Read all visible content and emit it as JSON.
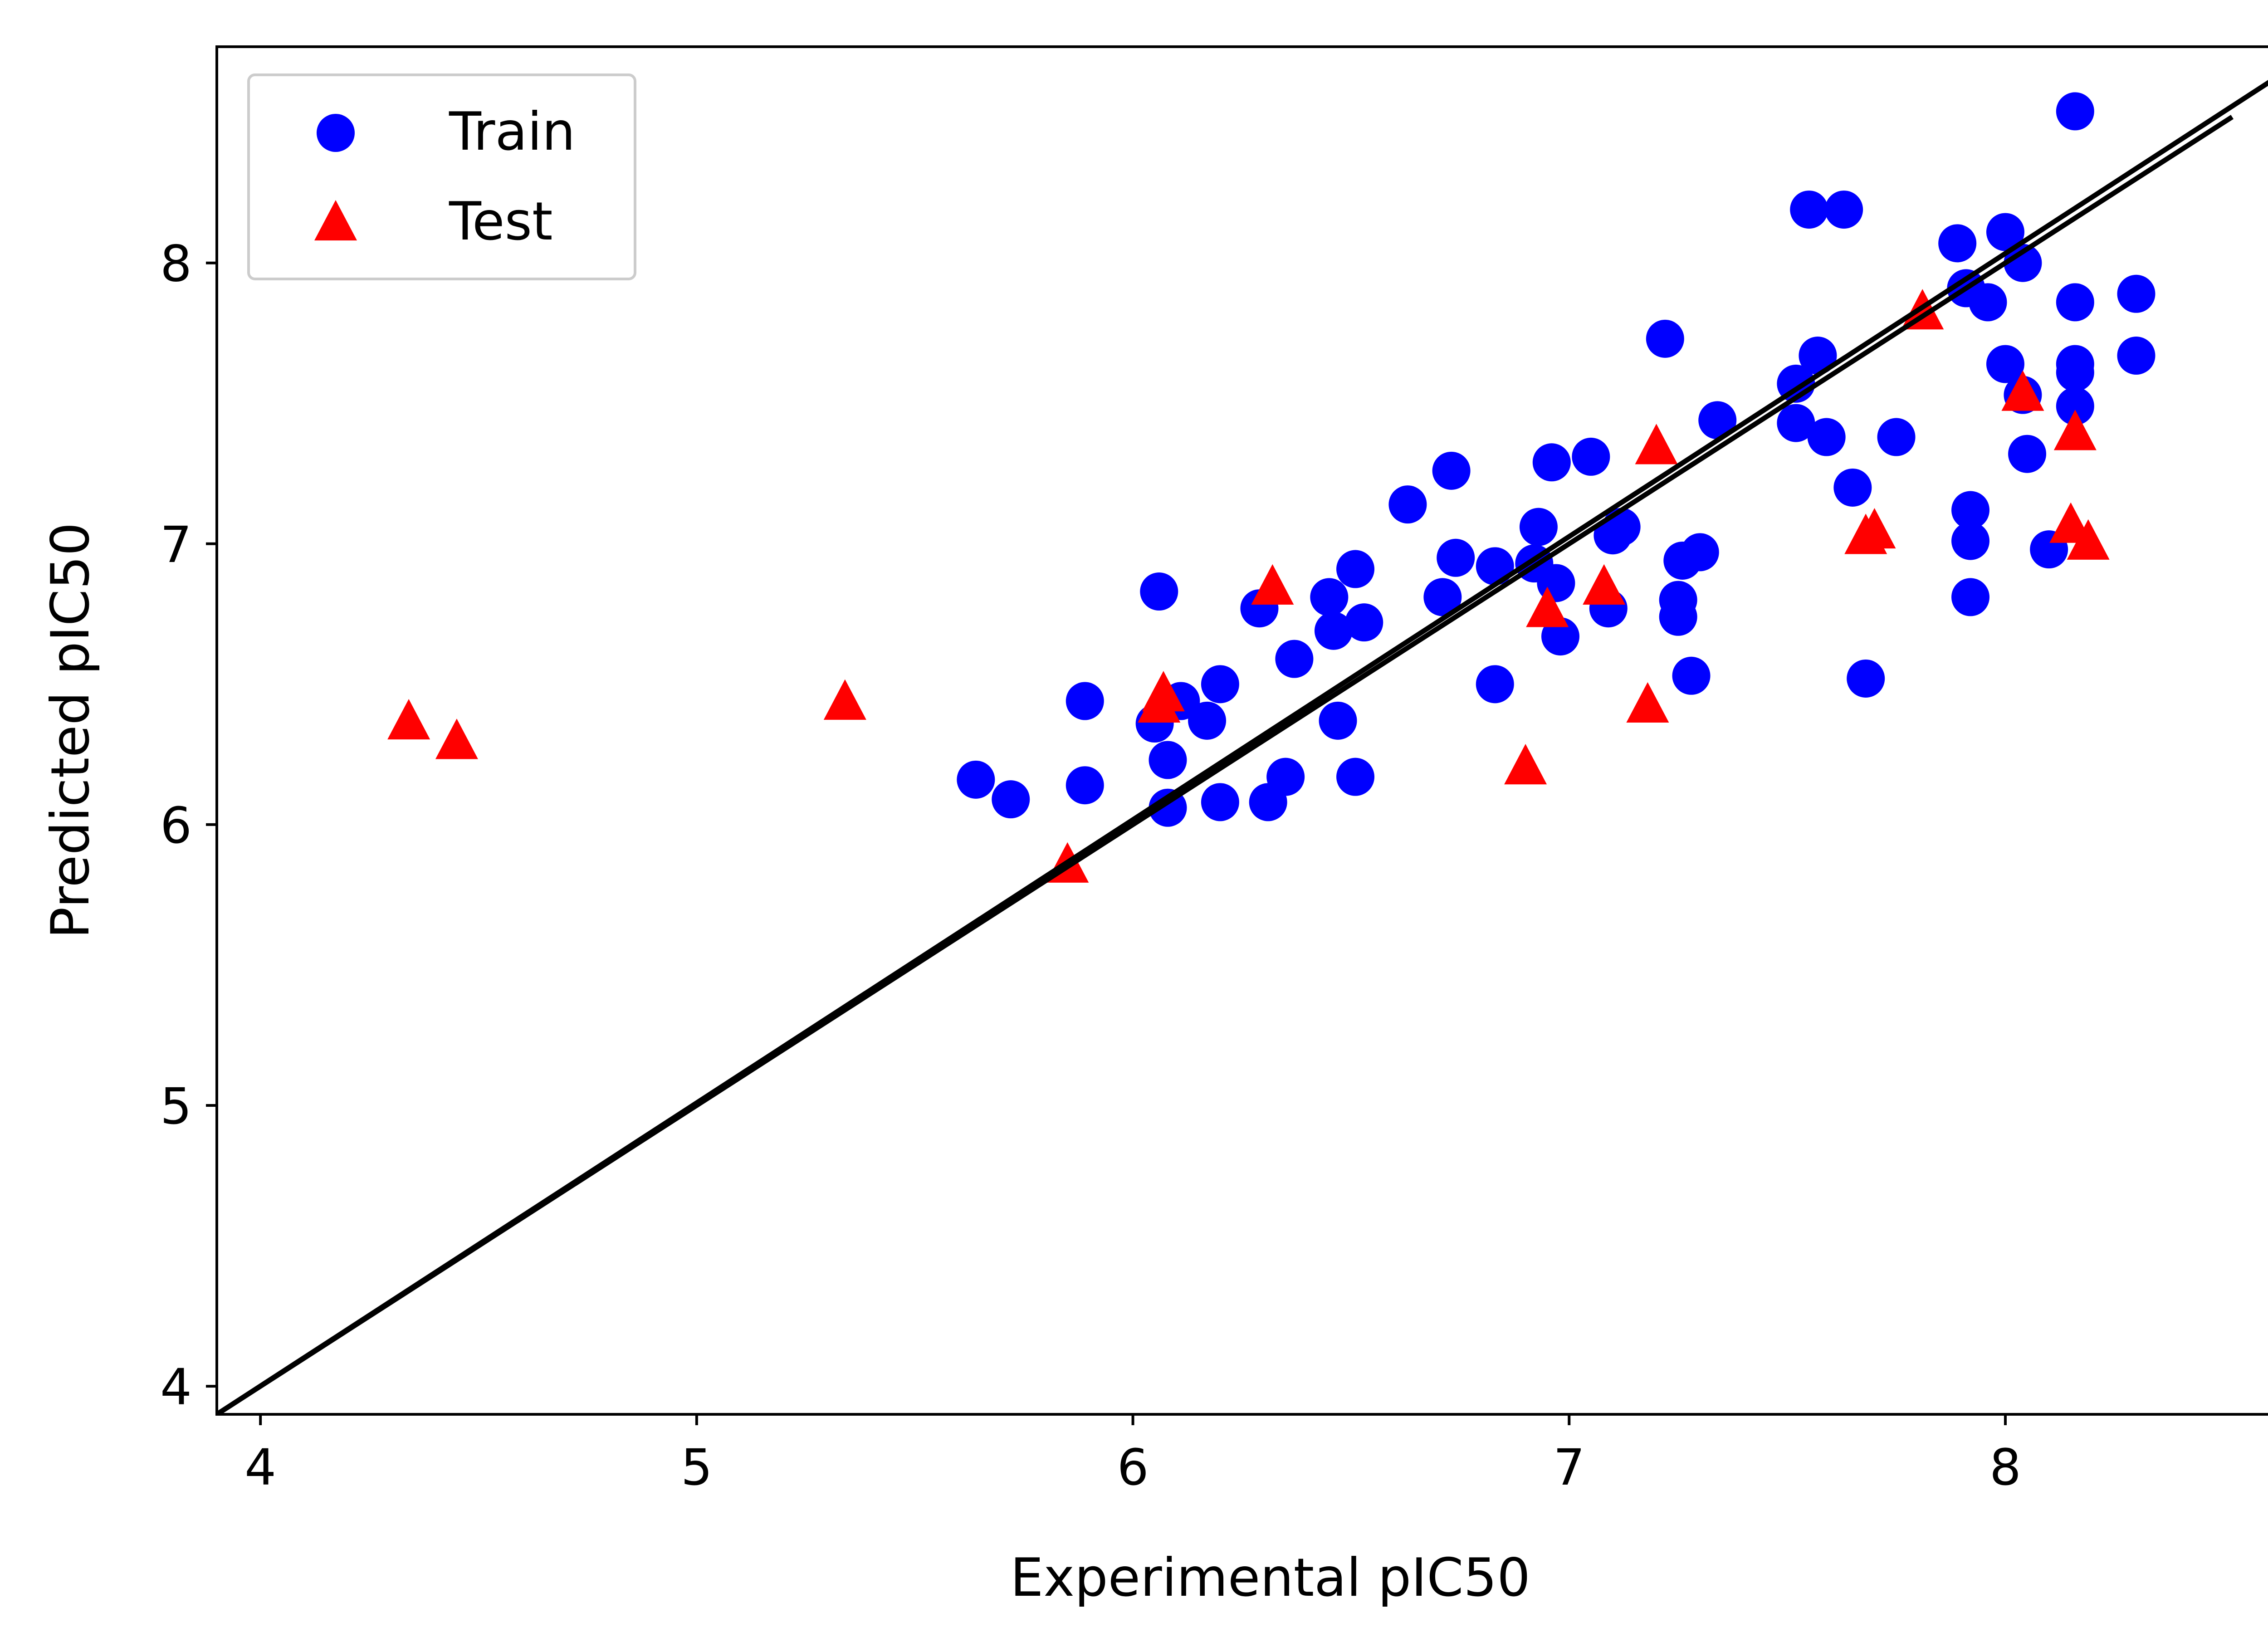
{
  "chart_data": {
    "type": "scatter",
    "title": "",
    "xlabel": "Experimental pIC50",
    "ylabel": "Predicted pIC50",
    "xlim": [
      3.9,
      8.73
    ],
    "ylim": [
      3.9,
      8.77
    ],
    "xticks": [
      4,
      5,
      6,
      7,
      8
    ],
    "yticks": [
      4,
      5,
      6,
      7,
      8
    ],
    "grid": false,
    "legend": {
      "placement": "top-left"
    },
    "colors": {
      "train": "#0000ff",
      "test": "#ff0000",
      "line": "#000000"
    },
    "series": [
      {
        "name": "Train",
        "marker": "circle",
        "x": [
          5.64,
          5.72,
          5.89,
          5.89,
          6.05,
          6.06,
          6.08,
          6.08,
          6.11,
          6.17,
          6.2,
          6.2,
          6.29,
          6.31,
          6.35,
          6.37,
          6.45,
          6.46,
          6.47,
          6.51,
          6.51,
          6.53,
          6.63,
          6.71,
          6.73,
          6.74,
          6.83,
          6.83,
          6.92,
          6.93,
          6.96,
          6.97,
          6.98,
          7.05,
          7.09,
          7.1,
          7.12,
          7.22,
          7.25,
          7.25,
          7.26,
          7.28,
          7.3,
          7.34,
          7.52,
          7.52,
          7.55,
          7.57,
          7.59,
          7.63,
          7.65,
          7.68,
          7.75,
          7.89,
          7.91,
          7.92,
          7.92,
          7.92,
          7.96,
          8.0,
          8.0,
          8.04,
          8.04,
          8.05,
          8.1,
          8.16,
          8.16,
          8.16,
          8.16,
          8.16,
          8.3,
          8.3
        ],
        "y": [
          6.16,
          6.09,
          6.14,
          6.44,
          6.36,
          6.83,
          6.06,
          6.23,
          6.44,
          6.37,
          6.08,
          6.5,
          6.77,
          6.08,
          6.17,
          6.59,
          6.81,
          6.69,
          6.37,
          6.91,
          6.17,
          6.72,
          7.14,
          6.81,
          7.26,
          6.95,
          6.92,
          6.5,
          6.93,
          7.06,
          7.29,
          6.86,
          6.67,
          7.31,
          6.77,
          7.03,
          7.06,
          7.73,
          6.74,
          6.8,
          6.94,
          6.53,
          6.97,
          7.44,
          7.57,
          7.43,
          8.19,
          7.67,
          7.38,
          8.19,
          7.2,
          6.52,
          7.38,
          8.07,
          7.91,
          7.12,
          7.01,
          6.81,
          7.86,
          8.11,
          7.64,
          8.0,
          7.53,
          7.32,
          6.98,
          8.54,
          7.86,
          7.64,
          7.61,
          7.49,
          7.89,
          7.67
        ]
      },
      {
        "name": "Test",
        "marker": "triangle",
        "x": [
          4.34,
          4.45,
          5.34,
          5.85,
          6.06,
          6.07,
          6.32,
          6.9,
          6.95,
          7.08,
          7.18,
          7.2,
          7.68,
          7.7,
          7.81,
          8.04,
          8.15,
          8.16,
          8.19
        ],
        "y": [
          6.36,
          6.29,
          6.43,
          5.85,
          6.42,
          6.46,
          6.84,
          6.2,
          6.76,
          6.84,
          6.42,
          7.34,
          7.02,
          7.04,
          7.82,
          7.53,
          7.06,
          7.39,
          7.0
        ]
      }
    ],
    "lines": [
      {
        "x": [
          3.9,
          8.73
        ],
        "y": [
          3.9,
          8.77
        ]
      },
      {
        "x": [
          3.9,
          8.52
        ],
        "y": [
          3.9,
          8.52
        ]
      }
    ]
  }
}
